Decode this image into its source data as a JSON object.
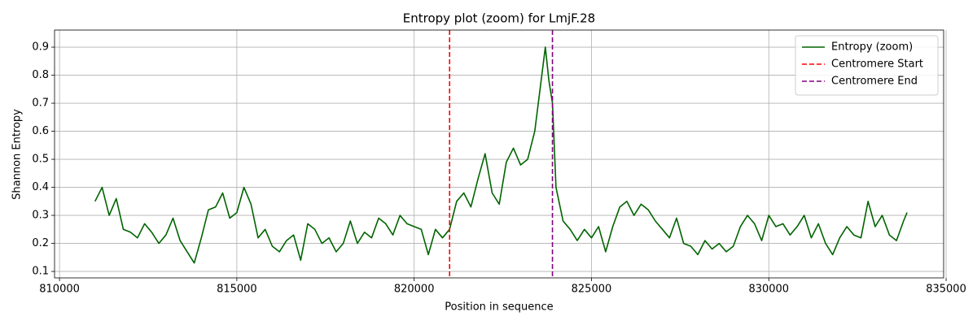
{
  "chart_data": {
    "type": "line",
    "title": "Entropy plot (zoom) for LmjF.28",
    "x_label": "Position in sequence",
    "y_label": "Shannon Entropy",
    "xlim": [
      809860,
      834930
    ],
    "ylim": [
      0.077,
      0.961
    ],
    "xticks": [
      810000,
      815000,
      820000,
      825000,
      830000,
      835000
    ],
    "yticks": [
      0.1,
      0.2,
      0.3,
      0.4,
      0.5,
      0.6,
      0.7,
      0.8,
      0.9
    ],
    "grid": true,
    "legend": "upper right",
    "x": [
      811000,
      811200,
      811400,
      811600,
      811800,
      812000,
      812200,
      812400,
      812600,
      812800,
      813000,
      813200,
      813400,
      813600,
      813800,
      814000,
      814200,
      814400,
      814600,
      814800,
      815000,
      815200,
      815400,
      815600,
      815800,
      816000,
      816200,
      816400,
      816600,
      816800,
      817000,
      817200,
      817400,
      817600,
      817800,
      818000,
      818200,
      818400,
      818600,
      818800,
      819000,
      819200,
      819400,
      819600,
      819800,
      820000,
      820200,
      820400,
      820600,
      820800,
      821000,
      821200,
      821400,
      821600,
      821800,
      822000,
      822200,
      822400,
      822600,
      822800,
      823000,
      823200,
      823400,
      823600,
      823700,
      823800,
      823900,
      824000,
      824200,
      824400,
      824600,
      824800,
      825000,
      825200,
      825400,
      825600,
      825800,
      826000,
      826200,
      826400,
      826600,
      826800,
      827000,
      827200,
      827400,
      827600,
      827800,
      828000,
      828200,
      828400,
      828600,
      828800,
      829000,
      829200,
      829400,
      829600,
      829800,
      830000,
      830200,
      830400,
      830600,
      830800,
      831000,
      831200,
      831400,
      831600,
      831800,
      832000,
      832200,
      832400,
      832600,
      832800,
      833000,
      833200,
      833400,
      833600,
      833800,
      833900
    ],
    "series": [
      {
        "name": "Entropy (zoom)",
        "color": "#006400",
        "values": [
          0.35,
          0.4,
          0.3,
          0.36,
          0.25,
          0.24,
          0.22,
          0.27,
          0.24,
          0.2,
          0.23,
          0.29,
          0.21,
          0.17,
          0.13,
          0.22,
          0.32,
          0.33,
          0.38,
          0.29,
          0.31,
          0.4,
          0.34,
          0.22,
          0.25,
          0.19,
          0.17,
          0.21,
          0.23,
          0.14,
          0.27,
          0.25,
          0.2,
          0.22,
          0.17,
          0.2,
          0.28,
          0.2,
          0.24,
          0.22,
          0.29,
          0.27,
          0.23,
          0.3,
          0.27,
          0.26,
          0.25,
          0.16,
          0.25,
          0.22,
          0.25,
          0.35,
          0.38,
          0.33,
          0.43,
          0.52,
          0.38,
          0.34,
          0.49,
          0.54,
          0.48,
          0.5,
          0.6,
          0.8,
          0.9,
          0.78,
          0.7,
          0.4,
          0.28,
          0.25,
          0.21,
          0.25,
          0.22,
          0.26,
          0.17,
          0.26,
          0.33,
          0.35,
          0.3,
          0.34,
          0.32,
          0.28,
          0.25,
          0.22,
          0.29,
          0.2,
          0.19,
          0.16,
          0.21,
          0.18,
          0.2,
          0.17,
          0.19,
          0.26,
          0.3,
          0.27,
          0.21,
          0.3,
          0.26,
          0.27,
          0.23,
          0.26,
          0.3,
          0.22,
          0.27,
          0.2,
          0.16,
          0.22,
          0.26,
          0.23,
          0.22,
          0.35,
          0.26,
          0.3,
          0.23,
          0.21,
          0.28,
          0.31
        ]
      }
    ],
    "vlines": [
      {
        "name": "Centromere Start",
        "x": 821000,
        "color": "#ff0000"
      },
      {
        "name": "Centromere End",
        "x": 823900,
        "color": "#800080"
      }
    ]
  }
}
